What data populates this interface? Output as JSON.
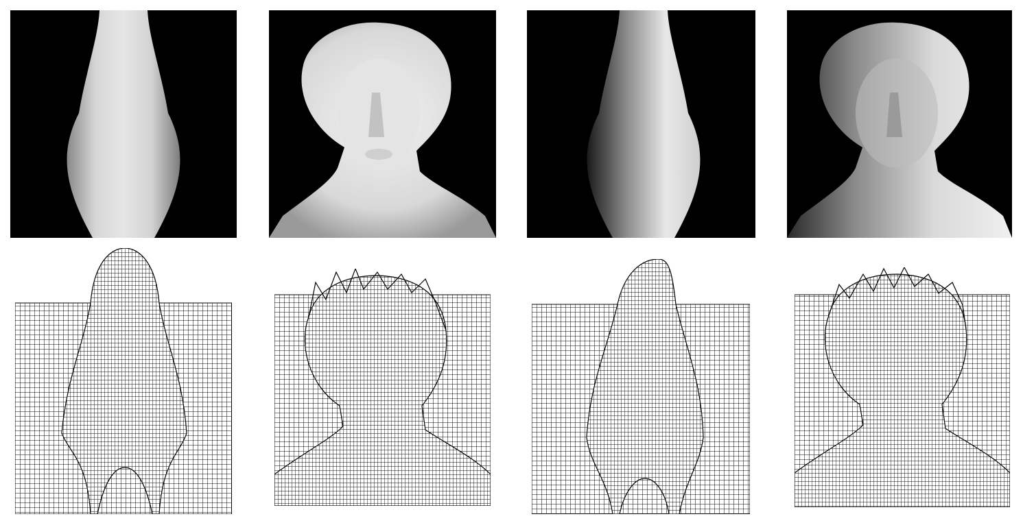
{
  "figure": {
    "background": "#ffffff",
    "render_background": "#000000",
    "surface_color": "#d9d9d9",
    "mesh_line_color": "#000000",
    "panels": [
      {
        "row": "top",
        "col": 1,
        "kind": "shaded-render",
        "subject": "vase",
        "lighting": "frontal"
      },
      {
        "row": "top",
        "col": 2,
        "kind": "shaded-render",
        "subject": "bust",
        "lighting": "frontal"
      },
      {
        "row": "top",
        "col": 3,
        "kind": "shaded-render",
        "subject": "vase",
        "lighting": "oblique-left"
      },
      {
        "row": "top",
        "col": 4,
        "kind": "shaded-render",
        "subject": "bust",
        "lighting": "oblique-left"
      },
      {
        "row": "bottom",
        "col": 1,
        "kind": "wireframe-depth-mesh",
        "subject": "vase"
      },
      {
        "row": "bottom",
        "col": 2,
        "kind": "wireframe-depth-mesh",
        "subject": "bust"
      },
      {
        "row": "bottom",
        "col": 3,
        "kind": "wireframe-depth-mesh",
        "subject": "vase"
      },
      {
        "row": "bottom",
        "col": 4,
        "kind": "wireframe-depth-mesh",
        "subject": "bust"
      }
    ]
  }
}
